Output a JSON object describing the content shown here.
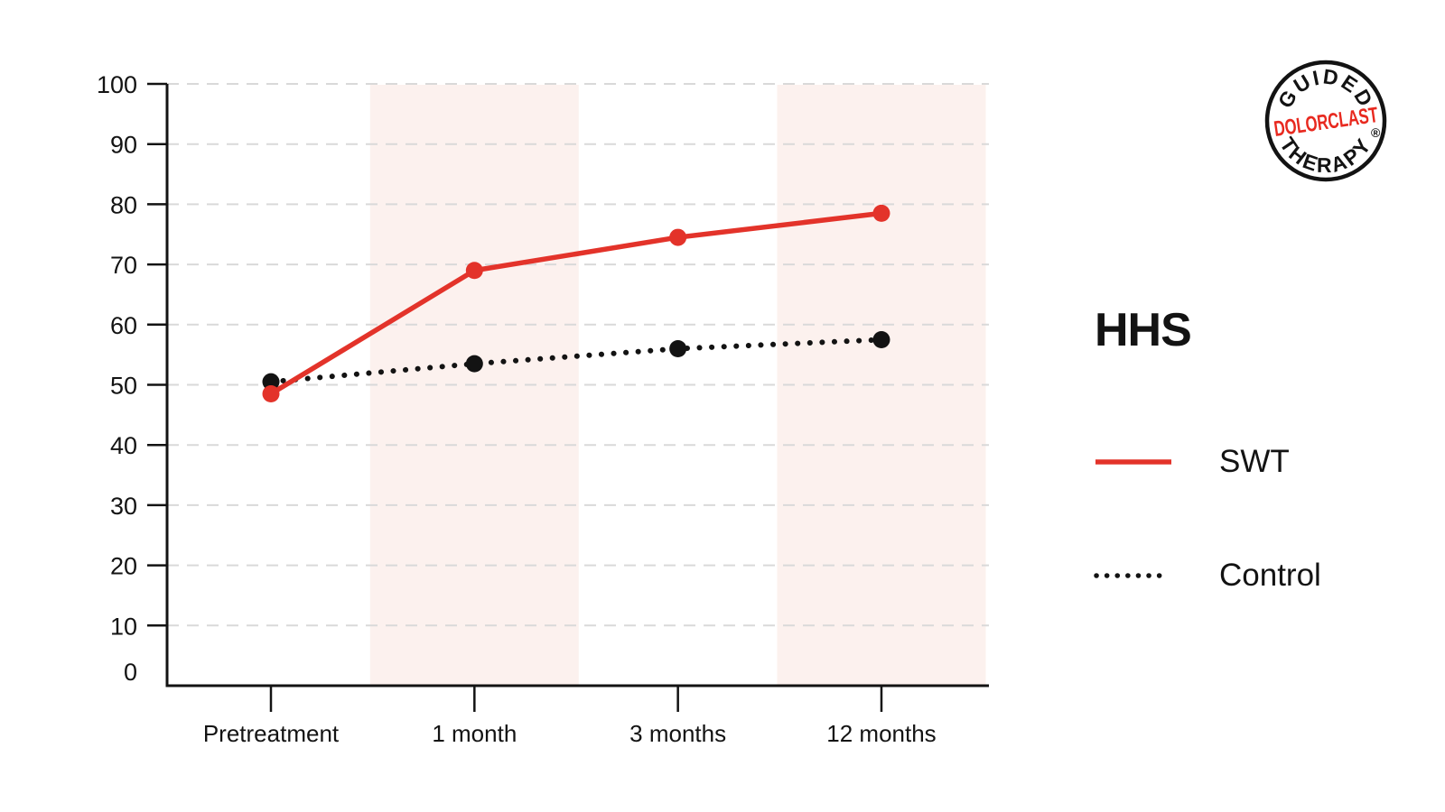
{
  "page": {
    "background": "#ffffff"
  },
  "logo": {
    "top_text": "GUIDED",
    "middle_text": "DOLORCLAST",
    "bottom_text": "THERAPY",
    "registered_mark": "®",
    "ring_color": "#131313",
    "middle_color": "#e8291f"
  },
  "chart_data": {
    "type": "line",
    "title": "HHS",
    "categories": [
      "Pretreatment",
      "1 month",
      "3 months",
      "12 months"
    ],
    "series": [
      {
        "name": "SWT",
        "style": "solid",
        "color": "#e3332a",
        "values": [
          48.5,
          69,
          74.5,
          78.5
        ]
      },
      {
        "name": "Control",
        "style": "dotted",
        "color": "#131313",
        "values": [
          50.5,
          53.5,
          56,
          57.5
        ]
      }
    ],
    "ylim": [
      0,
      100
    ],
    "ytick_step": 10,
    "grid": "horizontal-dashed",
    "grid_color": "#d9d9d9",
    "axis_color": "#131313",
    "text_color": "#131313",
    "highlight_bands": {
      "color": "#fcf1ee",
      "category_indexes": [
        1,
        3
      ]
    },
    "legend_position": "right"
  }
}
